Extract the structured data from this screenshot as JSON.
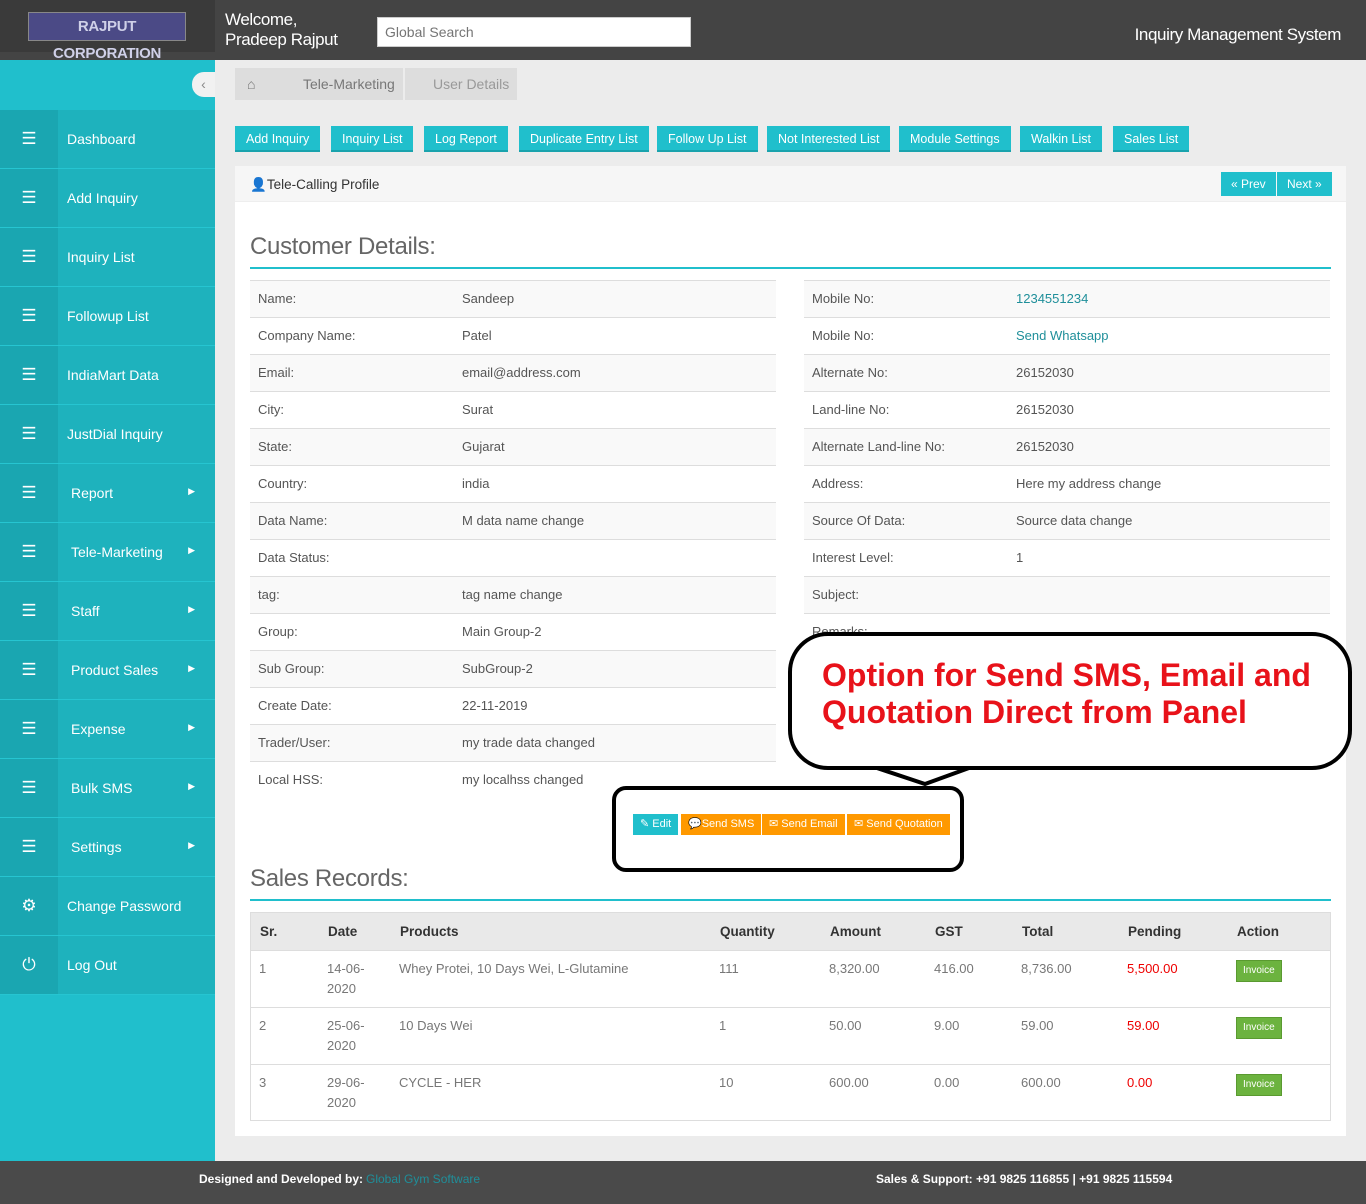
{
  "header": {
    "logo": "RAJPUT CORPORATION",
    "welcome_line1": "Welcome,",
    "welcome_line2": "Pradeep Rajput",
    "search_placeholder": "Global Search",
    "system_name": "Inquiry Management System"
  },
  "sidebar": {
    "items": [
      {
        "label": "Dashboard",
        "icon": "server-icon",
        "submenu": false
      },
      {
        "label": "Add Inquiry",
        "icon": "server-icon",
        "submenu": false
      },
      {
        "label": "Inquiry List",
        "icon": "server-icon",
        "submenu": false
      },
      {
        "label": "Followup List",
        "icon": "server-icon",
        "submenu": false
      },
      {
        "label": "IndiaMart Data",
        "icon": "server-icon",
        "submenu": false
      },
      {
        "label": "JustDial Inquiry",
        "icon": "server-icon",
        "submenu": false
      },
      {
        "label": "Report",
        "icon": "server-icon",
        "submenu": true
      },
      {
        "label": "Tele-Marketing",
        "icon": "server-icon",
        "submenu": true
      },
      {
        "label": "Staff",
        "icon": "server-icon",
        "submenu": true
      },
      {
        "label": "Product Sales",
        "icon": "server-icon",
        "submenu": true
      },
      {
        "label": "Expense",
        "icon": "server-icon",
        "submenu": true
      },
      {
        "label": "Bulk SMS",
        "icon": "server-icon",
        "submenu": true
      },
      {
        "label": "Settings",
        "icon": "server-icon",
        "submenu": true
      },
      {
        "label": "Change Password",
        "icon": "gears-icon",
        "submenu": false
      },
      {
        "label": "Log Out",
        "icon": "power-icon",
        "submenu": false
      }
    ]
  },
  "breadcrumb": [
    "Tele-Marketing",
    "User Details"
  ],
  "toolbar": [
    "Add Inquiry",
    "Inquiry List",
    "Log Report",
    "Duplicate Entry List",
    "Follow Up List",
    "Not Interested List",
    "Module Settings",
    "Walkin List",
    "Sales List"
  ],
  "panel": {
    "title": "Tele-Calling Profile",
    "prev": "« Prev",
    "next": "Next »"
  },
  "customer": {
    "heading": "Customer Details:",
    "left": [
      [
        "Name:",
        "Sandeep"
      ],
      [
        "Company Name:",
        "Patel"
      ],
      [
        "Email:",
        "email@address.com"
      ],
      [
        "City:",
        "Surat"
      ],
      [
        "State:",
        "Gujarat"
      ],
      [
        "Country:",
        "india"
      ],
      [
        "Data Name:",
        "M data name change"
      ],
      [
        "Data Status:",
        ""
      ],
      [
        "tag:",
        "tag name change"
      ],
      [
        "Group:",
        "Main Group-2"
      ],
      [
        "Sub Group:",
        "SubGroup-2"
      ],
      [
        "Create Date:",
        "22-11-2019"
      ],
      [
        "Trader/User:",
        "my trade data changed"
      ],
      [
        "Local HSS:",
        "my localhss changed"
      ]
    ],
    "right": [
      [
        "Mobile No:",
        "1234551234"
      ],
      [
        "Mobile No:",
        "Send Whatsapp"
      ],
      [
        "Alternate No:",
        "26152030"
      ],
      [
        "Land-line No:",
        "26152030"
      ],
      [
        "Alternate Land-line No:",
        "26152030"
      ],
      [
        "Address:",
        "Here my address change"
      ],
      [
        "Source Of Data:",
        "Source data change"
      ],
      [
        "Interest Level:",
        "1"
      ],
      [
        "Subject:",
        ""
      ],
      [
        "Remarks:",
        ""
      ]
    ]
  },
  "actions": {
    "edit": "Edit",
    "sms": "Send SMS",
    "email": "Send Email",
    "quotation": "Send Quotation"
  },
  "callout": {
    "line1": "Option for Send SMS, Email and",
    "line2": "Quotation Direct from Panel"
  },
  "sales": {
    "heading": "Sales Records:",
    "columns": [
      "Sr.",
      "Date",
      "Products",
      "Quantity",
      "Amount",
      "GST",
      "Total",
      "Pending",
      "Action"
    ],
    "rows": [
      [
        "1",
        "14-06-2020",
        "Whey Protei, 10 Days Wei, L-Glutamine",
        "111",
        "8,320.00",
        "416.00",
        "8,736.00",
        "5,500.00",
        "Invoice"
      ],
      [
        "2",
        "25-06-2020",
        "10 Days Wei",
        "1",
        "50.00",
        "9.00",
        "59.00",
        "59.00",
        "Invoice"
      ],
      [
        "3",
        "29-06-2020",
        "CYCLE - HER",
        "10",
        "600.00",
        "0.00",
        "600.00",
        "0.00",
        "Invoice"
      ]
    ]
  },
  "footer": {
    "designed_by": "Designed and Developed by:",
    "company": "Global Gym Software",
    "support": "Sales & Support: +91 9825 116855 | +91 9825 115594"
  },
  "colors": {
    "accent": "#20bfcc",
    "orange": "#f90",
    "invoice": "#6cb33f",
    "pending": "#e00",
    "callout": "#e8121a"
  }
}
